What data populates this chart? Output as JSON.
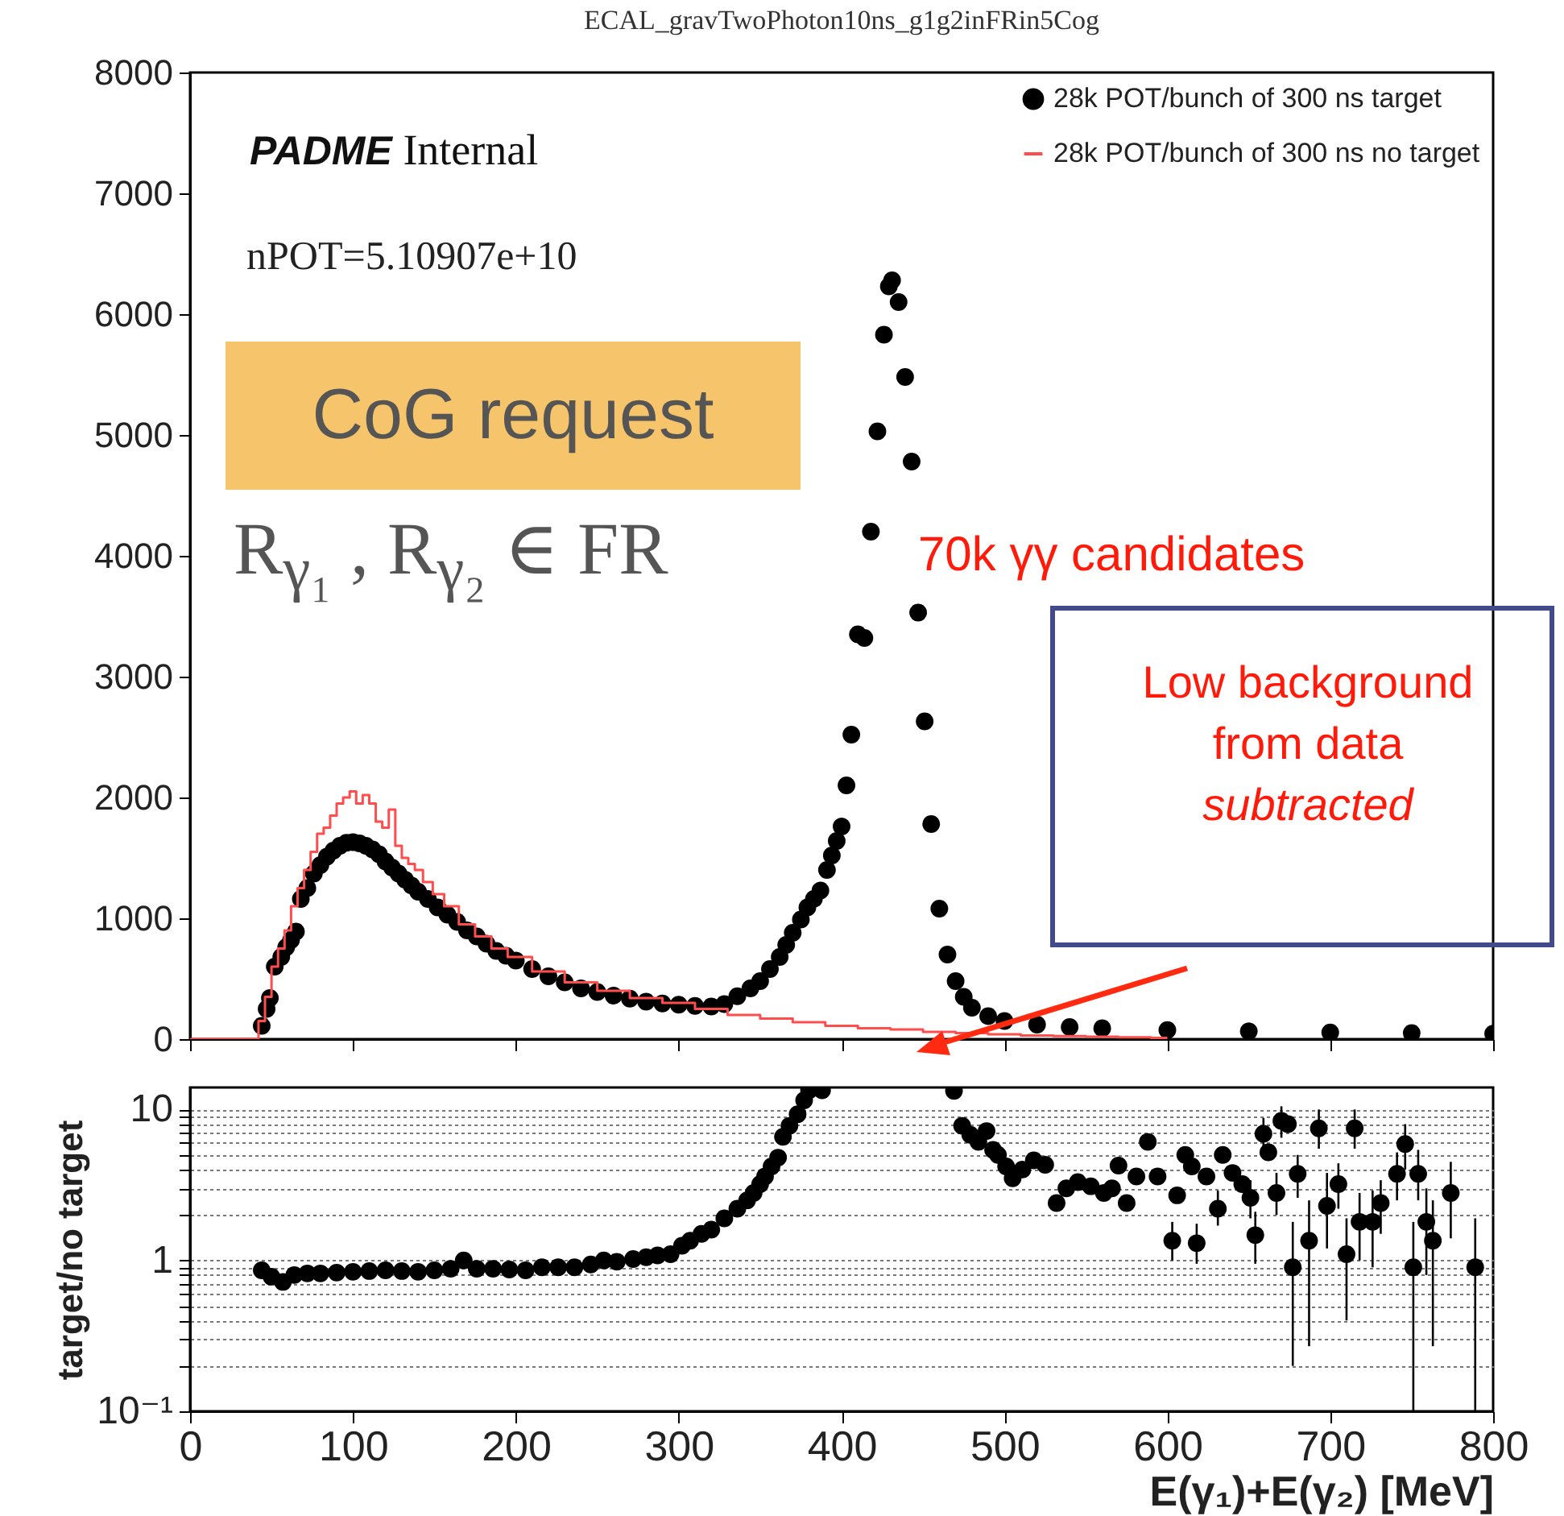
{
  "chart_data": [
    {
      "type": "scatter",
      "title": "ECAL_gravTwoPhoton10ns_g1g2inFRin5Cog",
      "xlim": [
        0,
        800
      ],
      "xticks": [
        0,
        100,
        200,
        300,
        400,
        500,
        600,
        700,
        800
      ],
      "ylim": [
        0,
        8000
      ],
      "yticks": [
        0,
        1000,
        2000,
        3000,
        4000,
        5000,
        6000,
        7000,
        8000
      ],
      "tick_labels": "y",
      "legend": "top right",
      "annotations": [
        "PADME Internal",
        "nPOT=5.10907e+10",
        "CoG request",
        "R$_{γ₁}$ , R$_{γ₂}$ ∈ FR",
        "70k γγ candidates",
        "Low background",
        "from data",
        "subtracted"
      ],
      "series": [
        {
          "name": "28k POT/bunch of 300 ns target",
          "color": "#000000",
          "marker": "circle",
          "x": [
            44,
            47,
            49,
            52,
            56,
            59,
            62,
            65,
            68,
            72,
            76,
            80,
            84,
            88,
            92,
            96,
            100,
            104,
            108,
            112,
            116,
            120,
            124,
            128,
            132,
            136,
            140,
            146,
            152,
            158,
            164,
            170,
            176,
            182,
            188,
            194,
            200,
            210,
            220,
            230,
            240,
            250,
            260,
            270,
            280,
            290,
            300,
            310,
            320,
            328,
            336,
            344,
            350,
            356,
            362,
            366,
            370,
            375,
            379,
            383,
            387,
            391,
            394,
            397,
            400,
            403,
            406,
            410,
            414,
            418,
            422,
            426,
            429,
            431,
            435,
            439,
            443,
            447,
            451,
            455,
            460,
            465,
            470,
            475,
            480,
            490,
            500,
            520,
            540,
            560,
            600,
            650,
            700,
            750,
            800
          ],
          "values": [
            110,
            250,
            340,
            600,
            680,
            760,
            820,
            890,
            1160,
            1250,
            1370,
            1440,
            1510,
            1560,
            1600,
            1625,
            1630,
            1620,
            1600,
            1570,
            1530,
            1470,
            1420,
            1370,
            1320,
            1270,
            1220,
            1160,
            1090,
            1030,
            970,
            900,
            850,
            790,
            730,
            690,
            650,
            580,
            520,
            470,
            420,
            390,
            360,
            335,
            310,
            295,
            285,
            275,
            270,
            290,
            355,
            420,
            480,
            580,
            680,
            780,
            880,
            990,
            1090,
            1160,
            1230,
            1400,
            1520,
            1640,
            1760,
            2100,
            2520,
            3350,
            3320,
            4200,
            5030,
            5830,
            6230,
            6280,
            6100,
            5480,
            4780,
            3530,
            2630,
            1780,
            1080,
            700,
            480,
            350,
            260,
            190,
            150,
            120,
            100,
            90,
            75,
            65,
            55,
            50,
            45
          ]
        },
        {
          "name": "28k POT/bunch of 300 ns no target",
          "color": "#ff4d4d",
          "type": "step",
          "marker": "none",
          "x": [
            0,
            40,
            44,
            48,
            52,
            56,
            60,
            64,
            68,
            72,
            76,
            80,
            84,
            88,
            92,
            96,
            100,
            104,
            108,
            112,
            116,
            120,
            124,
            128,
            132,
            136,
            140,
            146,
            152,
            160,
            170,
            180,
            190,
            200,
            220,
            240,
            260,
            280,
            300,
            320,
            340,
            360,
            380,
            400,
            420,
            440,
            460,
            480,
            500,
            520,
            540,
            560,
            580,
            600
          ],
          "values": [
            0,
            0,
            150,
            350,
            600,
            750,
            900,
            1100,
            1250,
            1400,
            1550,
            1700,
            1750,
            1850,
            1950,
            2000,
            2050,
            1950,
            2020,
            1950,
            1800,
            1750,
            1900,
            1600,
            1500,
            1450,
            1400,
            1300,
            1200,
            1100,
            950,
            850,
            750,
            680,
            560,
            470,
            400,
            340,
            300,
            250,
            200,
            170,
            140,
            110,
            90,
            80,
            60,
            50,
            40,
            30,
            25,
            20,
            15,
            10
          ]
        }
      ]
    },
    {
      "type": "scatter",
      "xlabel": "E(γ₁)+E(γ₂) [MeV]",
      "ylabel": "target/no target",
      "xlim": [
        0,
        800
      ],
      "xticks": [
        0,
        100,
        200,
        300,
        400,
        500,
        600,
        700,
        800
      ],
      "log": "y",
      "ylim": [
        0.1,
        14
      ],
      "yticks": [
        {
          "value": 0.1,
          "label": "10⁻¹"
        },
        {
          "value": 0.2,
          "label": null
        },
        {
          "value": 0.3,
          "label": null
        },
        {
          "value": 0.4,
          "label": null
        },
        {
          "value": 0.5,
          "label": null
        },
        {
          "value": 0.6,
          "label": null
        },
        {
          "value": 0.7,
          "label": null
        },
        {
          "value": 0.8,
          "label": null
        },
        {
          "value": 0.9,
          "label": null
        },
        1,
        {
          "value": 2,
          "label": null
        },
        {
          "value": 3,
          "label": null
        },
        {
          "value": 4,
          "label": null
        },
        {
          "value": 5,
          "label": null
        },
        {
          "value": 6,
          "label": null
        },
        {
          "value": 7,
          "label": null
        },
        {
          "value": 8,
          "label": null
        },
        {
          "value": 9,
          "label": null
        },
        10
      ],
      "grid": "y",
      "marker": "circle",
      "x": [
        44,
        50,
        57,
        64,
        72,
        80,
        90,
        100,
        110,
        120,
        130,
        140,
        150,
        160,
        168,
        176,
        186,
        196,
        206,
        216,
        226,
        236,
        246,
        254,
        262,
        272,
        280,
        287,
        295,
        302,
        307,
        314,
        320,
        328,
        336,
        342,
        346,
        350,
        353,
        357,
        361,
        364,
        368,
        373,
        377,
        380,
        388,
        469,
        474,
        479,
        484,
        489,
        493,
        496,
        501,
        505,
        511,
        518,
        525,
        532,
        538,
        545,
        553,
        561,
        566,
        570,
        575,
        581,
        588,
        594,
        603,
        606,
        611,
        615,
        618,
        624,
        631,
        634,
        640,
        646,
        651,
        654,
        659,
        662,
        667,
        670,
        674,
        677,
        680,
        687,
        693,
        698,
        705,
        710,
        715,
        718,
        726,
        731,
        741,
        746,
        751,
        754,
        759,
        763,
        774,
        789
      ],
      "values": [
        0.86,
        0.78,
        0.72,
        0.8,
        0.82,
        0.82,
        0.83,
        0.84,
        0.85,
        0.86,
        0.85,
        0.84,
        0.86,
        0.88,
        1.0,
        0.88,
        0.88,
        0.87,
        0.86,
        0.9,
        0.9,
        0.9,
        0.94,
        1.0,
        0.98,
        1.02,
        1.05,
        1.08,
        1.1,
        1.25,
        1.35,
        1.5,
        1.6,
        1.9,
        2.2,
        2.5,
        2.8,
        3.2,
        3.6,
        4.2,
        4.8,
        6.6,
        7.8,
        9.3,
        11.5,
        13.4,
        13.4,
        13.3,
        7.8,
        6.8,
        6.1,
        7.2,
        5.4,
        5.0,
        4.2,
        3.5,
        4.0,
        4.6,
        4.3,
        2.4,
        3.0,
        3.3,
        3.1,
        2.8,
        3.0,
        4.25,
        2.4,
        3.6,
        6.1,
        3.6,
        1.35,
        2.7,
        5.0,
        4.2,
        1.3,
        3.6,
        2.2,
        5.0,
        3.8,
        3.2,
        2.6,
        1.47,
        6.9,
        5.2,
        2.8,
        8.4,
        8.0,
        0.9,
        3.75,
        1.35,
        7.5,
        2.3,
        3.2,
        1.1,
        7.5,
        1.8,
        1.8,
        2.4,
        3.75,
        5.9,
        0.9,
        3.75,
        1.8,
        1.35,
        2.8,
        0.9
      ],
      "errors": [
        null,
        null,
        null,
        null,
        null,
        null,
        null,
        null,
        null,
        null,
        null,
        null,
        null,
        null,
        null,
        null,
        null,
        null,
        null,
        null,
        null,
        null,
        null,
        null,
        null,
        null,
        null,
        null,
        null,
        null,
        null,
        null,
        null,
        null,
        null,
        null,
        null,
        null,
        null,
        null,
        null,
        null,
        null,
        null,
        null,
        null,
        null,
        null,
        null,
        null,
        null,
        null,
        null,
        null,
        null,
        null,
        null,
        null,
        null,
        null,
        null,
        null,
        null,
        null,
        null,
        null,
        null,
        null,
        null,
        null,
        [
          1.0,
          1.8
        ],
        null,
        null,
        null,
        [
          0.95,
          1.75
        ],
        null,
        [
          1.7,
          2.9
        ],
        null,
        null,
        null,
        [
          1.9,
          3.4
        ],
        [
          0.95,
          2.1
        ],
        [
          5.3,
          8.8
        ],
        null,
        [
          2.0,
          3.8
        ],
        [
          6.5,
          10.5
        ],
        null,
        [
          0.2,
          1.8
        ],
        [
          2.6,
          5.0
        ],
        [
          0.27,
          2.5
        ],
        [
          5.5,
          10
        ],
        [
          1.2,
          3.8
        ],
        [
          2.2,
          4.4
        ],
        [
          0.4,
          1.9
        ],
        [
          5.5,
          10
        ],
        [
          1.0,
          2.8
        ],
        [
          0.9,
          2.9
        ],
        [
          1.5,
          3.4
        ],
        [
          2.5,
          5.2
        ],
        [
          4.0,
          8.0
        ],
        [
          0.1,
          1.8
        ],
        [
          2.5,
          5.4
        ],
        [
          0.8,
          3.0
        ],
        [
          0.27,
          2.5
        ],
        [
          1.4,
          4.5
        ],
        [
          0.1,
          1.9
        ]
      ]
    }
  ]
}
